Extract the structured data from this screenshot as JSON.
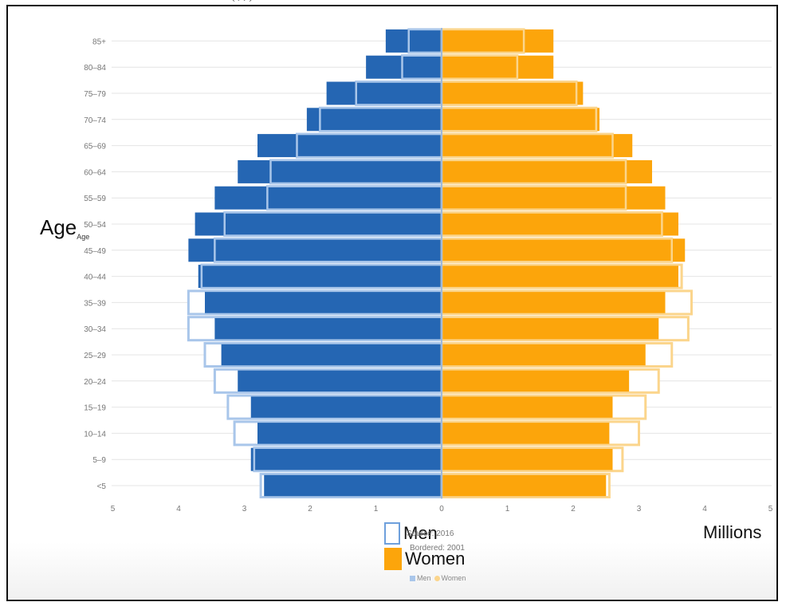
{
  "top_text": "( , ; )",
  "chart_data": {
    "type": "bar",
    "orientation": "horizontal-population-pyramid",
    "categories": [
      "85+",
      "80-84",
      "75-79",
      "70-74",
      "65-69",
      "60-64",
      "55-59",
      "50-54",
      "45-49",
      "40-44",
      "35-39",
      "30-34",
      "25-29",
      "20-24",
      "15-19",
      "10-14",
      "5-9",
      "<5"
    ],
    "category_labels": [
      "85+",
      "80–84",
      "75–79",
      "70–74",
      "65–69",
      "60–64",
      "55–59",
      "50–54",
      "45–49",
      "40–44",
      "35–39",
      "30–34",
      "25–29",
      "20–24",
      "15–19",
      "10–14",
      "5–9",
      "<5"
    ],
    "series": [
      {
        "name": "Men",
        "year": "2016",
        "side": "left",
        "style": "filled",
        "values": [
          0.85,
          1.15,
          1.75,
          2.05,
          2.8,
          3.1,
          3.45,
          3.75,
          3.85,
          3.7,
          3.6,
          3.45,
          3.35,
          3.1,
          2.9,
          2.8,
          2.9,
          2.7
        ]
      },
      {
        "name": "Women",
        "year": "2016",
        "side": "right",
        "style": "filled",
        "values": [
          1.7,
          1.7,
          2.15,
          2.4,
          2.9,
          3.2,
          3.4,
          3.6,
          3.7,
          3.6,
          3.4,
          3.3,
          3.1,
          2.85,
          2.6,
          2.55,
          2.6,
          2.5
        ]
      },
      {
        "name": "Men",
        "year": "2001",
        "side": "left",
        "style": "bordered",
        "values": [
          0.5,
          0.6,
          1.3,
          1.85,
          2.2,
          2.6,
          2.65,
          3.3,
          3.45,
          3.65,
          3.85,
          3.85,
          3.6,
          3.45,
          3.25,
          3.15,
          2.85,
          2.75
        ]
      },
      {
        "name": "Women",
        "year": "2001",
        "side": "right",
        "style": "bordered",
        "values": [
          1.25,
          1.15,
          2.05,
          2.35,
          2.6,
          2.8,
          2.8,
          3.35,
          3.5,
          3.65,
          3.8,
          3.75,
          3.5,
          3.3,
          3.1,
          3.0,
          2.75,
          2.55
        ]
      }
    ],
    "x_ticks": [
      "5",
      "4",
      "3",
      "2",
      "1",
      "0",
      "1",
      "2",
      "3",
      "4",
      "5"
    ],
    "xlim": [
      -5,
      5
    ],
    "xlabel": "Millions",
    "ylabel": "Age",
    "ylabel_small": "Age",
    "grid": true,
    "colors": {
      "men": "#2566b3",
      "women": "#fca50b",
      "men_border": "#a9c6ea",
      "women_border": "#fbd58c",
      "grid": "#e4e4e4",
      "axis": "#9db9dd"
    }
  },
  "legend": {
    "men_label": "Men",
    "women_label": "Women",
    "source_text": "Source: 2016",
    "bordered_text": "Bordered: 2001",
    "mini_men": "Men",
    "mini_women": "Women"
  }
}
